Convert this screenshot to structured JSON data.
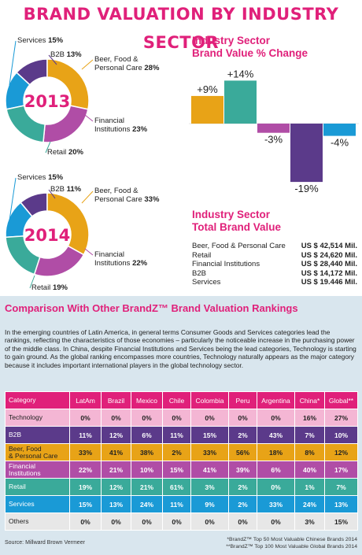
{
  "title": "BRAND VALUATION BY INDUSTRY SECTOR",
  "pies": [
    {
      "year": "2013",
      "slices": [
        {
          "label": "Services",
          "label2": "",
          "value": 15,
          "text": "15%",
          "color": "#1a9ad6"
        },
        {
          "label": "B2B",
          "label2": "",
          "value": 13,
          "text": "13%",
          "color": "#5b3a8a"
        },
        {
          "label": "Beer, Food &",
          "label2": "Personal Care",
          "value": 28,
          "text": "28%",
          "color": "#e8a317"
        },
        {
          "label": "Financial",
          "label2": "Institutions",
          "value": 23,
          "text": "23%",
          "color": "#b04da6"
        },
        {
          "label": "Retail",
          "label2": "",
          "value": 20,
          "text": "20%",
          "color": "#3aaa9a"
        }
      ]
    },
    {
      "year": "2014",
      "slices": [
        {
          "label": "Services",
          "label2": "",
          "value": 15,
          "text": "15%",
          "color": "#1a9ad6"
        },
        {
          "label": "B2B",
          "label2": "",
          "value": 11,
          "text": "11%",
          "color": "#5b3a8a"
        },
        {
          "label": "Beer, Food &",
          "label2": "Personal Care",
          "value": 33,
          "text": "33%",
          "color": "#e8a317"
        },
        {
          "label": "Financial",
          "label2": "Institutions",
          "value": 22,
          "text": "22%",
          "color": "#b04da6"
        },
        {
          "label": "Retail",
          "label2": "",
          "value": 19,
          "text": "19%",
          "color": "#3aaa9a"
        }
      ]
    }
  ],
  "pct_change": {
    "title_line1": "Industry Sector",
    "title_line2": "Brand Value  % Change"
  },
  "chart_data": {
    "type": "bar",
    "categories": [
      "Beer, Food & Personal Care",
      "Retail",
      "Financial Institutions",
      "B2B",
      "Services"
    ],
    "values": [
      9,
      14,
      -3,
      -19,
      -4
    ],
    "labels": [
      "+9%",
      "+14%",
      "-3%",
      "-19%",
      "-4%"
    ],
    "colors": [
      "#e8a317",
      "#3aaa9a",
      "#b04da6",
      "#5b3a8a",
      "#1a9ad6"
    ],
    "ylim": [
      -20,
      15
    ]
  },
  "total_value": {
    "title_line1": "Industry Sector",
    "title_line2": "Total Brand Value",
    "rows": [
      {
        "label": "Beer, Food & Personal Care",
        "value": "US $ 42,514 Mil."
      },
      {
        "label": "Retail",
        "value": "US $ 24,620 Mil."
      },
      {
        "label": "Financial Institutions",
        "value": "US $ 28,440 Mil."
      },
      {
        "label": "B2B",
        "value": "US $ 14,172 Mil."
      },
      {
        "label": "Services",
        "value": "US $ 19.446 Mil."
      }
    ]
  },
  "comparison": {
    "title": "Comparison With Other BrandZ™ Brand Valuation Rankings",
    "paragraph": "In the emerging countries of Latin America, in general terms Consumer Goods and Services categories lead the rankings, reflecting the characteristics of those economies – particularly the noticeable increase in the purchasing power of the middle class. In China, despite Financial Institutions and Services being the lead categories, Technology is starting to gain ground. As the global ranking encompasses more countries, Technology naturally appears as the major category because it includes important international players in the global technology sector.",
    "headers": [
      "Category",
      "LatAm",
      "Brazil",
      "Mexico",
      "Chile",
      "Colombia",
      "Peru",
      "Argentina",
      "China*",
      "Global**"
    ],
    "rows": [
      {
        "category": "Technology",
        "category2": "",
        "bg": "#f4b6d4",
        "color": "#222222",
        "values": [
          "0%",
          "0%",
          "0%",
          "0%",
          "0%",
          "0%",
          "0%",
          "16%",
          "27%"
        ]
      },
      {
        "category": "B2B",
        "category2": "",
        "bg": "#5b3a8a",
        "color": "#ffffff",
        "values": [
          "11%",
          "12%",
          "6%",
          "11%",
          "15%",
          "2%",
          "43%",
          "7%",
          "10%"
        ]
      },
      {
        "category": "Beer, Food",
        "category2": "& Personal Care",
        "bg": "#e8a317",
        "color": "#222222",
        "values": [
          "33%",
          "41%",
          "38%",
          "2%",
          "33%",
          "56%",
          "18%",
          "8%",
          "12%"
        ]
      },
      {
        "category": "Financial",
        "category2": "Institutions",
        "bg": "#b04da6",
        "color": "#ffffff",
        "values": [
          "22%",
          "21%",
          "10%",
          "15%",
          "41%",
          "39%",
          "6%",
          "40%",
          "17%"
        ]
      },
      {
        "category": "Retail",
        "category2": "",
        "bg": "#3aaa9a",
        "color": "#ffffff",
        "values": [
          "19%",
          "12%",
          "21%",
          "61%",
          "3%",
          "2%",
          "0%",
          "1%",
          "7%"
        ]
      },
      {
        "category": "Services",
        "category2": "",
        "bg": "#1a9ad6",
        "color": "#ffffff",
        "values": [
          "15%",
          "13%",
          "24%",
          "11%",
          "9%",
          "2%",
          "33%",
          "24%",
          "13%"
        ]
      },
      {
        "category": "Others",
        "category2": "",
        "bg": "#e7e7e7",
        "color": "#222222",
        "values": [
          "0%",
          "0%",
          "0%",
          "0%",
          "0%",
          "0%",
          "0%",
          "3%",
          "15%"
        ]
      }
    ]
  },
  "source": "Source: Millward Brown Vermeer",
  "footnote1": "*BrandZ™ Top 50 Most Valuable Chinese Brands 2014",
  "footnote2": "**BrandZ™ Top 100 Most Valuable Global Brands 2014"
}
